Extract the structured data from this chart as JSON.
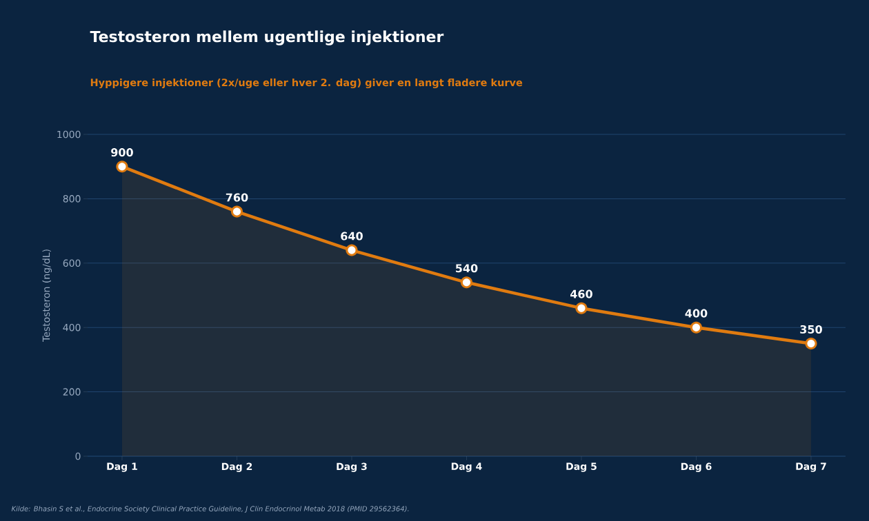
{
  "chart_data": {
    "type": "area",
    "title": "Testosteron mellem ugentlige injektioner",
    "subtitle": "Hyppigere injektioner (2x/uge eller hver 2. dag) giver en langt fladere kurve",
    "ylabel": "Testosteron (ng/dL)",
    "categories": [
      "Dag 1",
      "Dag 2",
      "Dag 3",
      "Dag 4",
      "Dag 5",
      "Dag 6",
      "Dag 7"
    ],
    "series": [
      {
        "color": "#e07b10",
        "values": [
          900,
          760,
          640,
          540,
          460,
          400,
          350
        ]
      }
    ],
    "ylim": [
      0,
      1000
    ],
    "yticks": [
      0,
      200,
      400,
      600,
      800,
      1000
    ],
    "grid": "y",
    "marker": "circle",
    "data_labels": true,
    "annotations": [
      "Kilde: Bhasin S et al., Endocrine Society Clinical Practice Guideline, J Clin Endocrinol Metab 2018 (PMID 29562364)."
    ]
  }
}
